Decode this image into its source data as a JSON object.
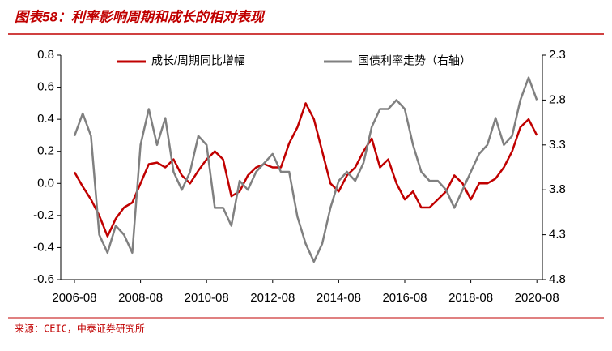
{
  "chart_data": {
    "type": "line",
    "title": "图表58：利率影响周期和成长的相对表现",
    "source": "来源：CEIC，中泰证券研究所",
    "x": [
      "2006-08",
      "2006-11",
      "2007-02",
      "2007-05",
      "2007-08",
      "2007-11",
      "2008-02",
      "2008-05",
      "2008-08",
      "2008-11",
      "2009-02",
      "2009-05",
      "2009-08",
      "2009-11",
      "2010-02",
      "2010-05",
      "2010-08",
      "2010-11",
      "2011-02",
      "2011-05",
      "2011-08",
      "2011-11",
      "2012-02",
      "2012-05",
      "2012-08",
      "2012-11",
      "2013-02",
      "2013-05",
      "2013-08",
      "2013-11",
      "2014-02",
      "2014-05",
      "2014-08",
      "2014-11",
      "2015-02",
      "2015-05",
      "2015-08",
      "2015-11",
      "2016-02",
      "2016-05",
      "2016-08",
      "2016-11",
      "2017-02",
      "2017-05",
      "2017-08",
      "2017-11",
      "2018-02",
      "2018-05",
      "2018-08",
      "2018-11",
      "2019-02",
      "2019-05",
      "2019-08",
      "2019-11",
      "2020-02",
      "2020-05",
      "2020-08"
    ],
    "series": [
      {
        "name": "成长/周期同比增幅",
        "color": "#c00000",
        "values": [
          0.07,
          -0.02,
          -0.1,
          -0.2,
          -0.33,
          -0.22,
          -0.15,
          -0.12,
          0.0,
          0.12,
          0.13,
          0.1,
          0.15,
          0.05,
          0.0,
          0.08,
          0.15,
          0.2,
          0.15,
          -0.08,
          -0.05,
          0.05,
          0.1,
          0.12,
          0.1,
          0.1,
          0.25,
          0.35,
          0.5,
          0.4,
          0.2,
          0.0,
          -0.05,
          0.05,
          0.1,
          0.2,
          0.28,
          0.1,
          0.15,
          0.0,
          -0.1,
          -0.05,
          -0.15,
          -0.15,
          -0.1,
          -0.05,
          0.05,
          0.0,
          -0.1,
          0.0,
          0.0,
          0.03,
          0.1,
          0.2,
          0.35,
          0.4,
          0.3
        ]
      },
      {
        "name": "国债利率走势（右轴）",
        "color": "#808080",
        "axis": "y2",
        "values": [
          3.2,
          2.95,
          3.2,
          4.3,
          4.5,
          4.2,
          4.3,
          4.5,
          3.3,
          2.9,
          3.3,
          3.0,
          3.6,
          3.8,
          3.6,
          3.2,
          3.3,
          4.0,
          4.0,
          4.2,
          3.7,
          3.8,
          3.6,
          3.5,
          3.4,
          3.6,
          3.6,
          4.1,
          4.4,
          4.6,
          4.4,
          4.0,
          3.7,
          3.6,
          3.7,
          3.5,
          3.1,
          2.9,
          2.9,
          2.8,
          2.9,
          3.3,
          3.6,
          3.7,
          3.7,
          3.8,
          4.0,
          3.8,
          3.6,
          3.4,
          3.3,
          3.0,
          3.3,
          3.2,
          2.8,
          2.55,
          2.8
        ]
      }
    ],
    "xlim": [
      "2006-03",
      "2020-10"
    ],
    "xticks": [
      "2006-08",
      "2008-08",
      "2010-08",
      "2012-08",
      "2014-08",
      "2016-08",
      "2018-08",
      "2020-08"
    ],
    "ylim": [
      -0.6,
      0.8
    ],
    "yticks": [
      -0.6,
      -0.4,
      -0.2,
      {
        "value": 0,
        "label": "0.0"
      },
      0.2,
      0.4,
      0.6,
      0.8
    ],
    "y2lim": [
      4.8,
      2.3
    ],
    "y2ticks": [
      2.3,
      2.8,
      3.3,
      3.8,
      4.3,
      4.8
    ],
    "legend": "top"
  }
}
